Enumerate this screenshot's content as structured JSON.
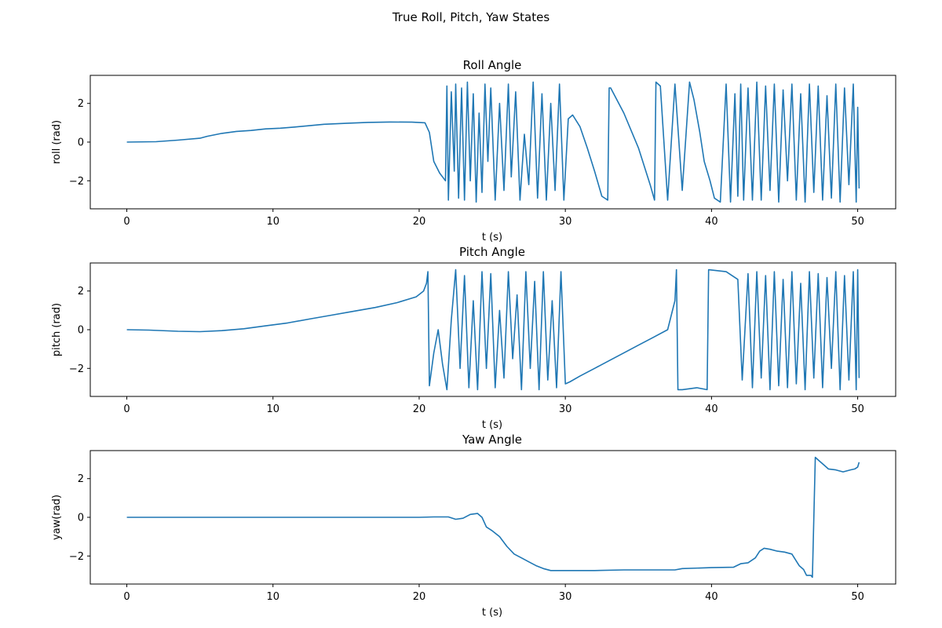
{
  "figure": {
    "title": "True Roll, Pitch, Yaw States"
  },
  "colors": {
    "series": "#1f77b4",
    "axes": "#000000",
    "background": "#ffffff"
  },
  "chart_data": [
    {
      "type": "line",
      "title": "Roll Angle",
      "xlabel": "t (s)",
      "ylabel": "roll (rad)",
      "xlim": [
        -2.5,
        52.6
      ],
      "ylim": [
        -3.45,
        3.45
      ],
      "xticks": [
        0,
        10,
        20,
        30,
        40,
        50
      ],
      "xtick_labels": [
        "0",
        "10",
        "20",
        "30",
        "40",
        "50"
      ],
      "yticks": [
        -2,
        0,
        2
      ],
      "ytick_labels": [
        "−2",
        "0",
        "2"
      ],
      "grid": false,
      "series": [
        {
          "x": [
            0,
            2,
            3.5,
            5,
            5.5,
            6.5,
            7.5,
            8.5,
            9.5,
            10.5,
            11.5,
            12.5,
            13.5,
            15,
            16.5,
            18,
            19.5,
            20.4,
            20.7,
            21.0,
            21.4,
            21.8,
            21.9,
            22.0,
            22.2,
            22.4,
            22.5,
            22.7,
            22.9,
            23.1,
            23.3,
            23.5,
            23.7,
            23.9,
            24.1,
            24.3,
            24.5,
            24.7,
            24.9,
            25.2,
            25.5,
            25.8,
            26.1,
            26.3,
            26.6,
            26.9,
            27.2,
            27.5,
            27.8,
            28.1,
            28.4,
            28.7,
            29.0,
            29.3,
            29.6,
            29.9,
            30.2,
            30.5,
            31.0,
            31.5,
            32.0,
            32.5,
            32.9,
            33.0,
            33.1,
            34.0,
            35.0,
            35.8,
            36.1,
            36.2,
            36.5,
            37.0,
            37.5,
            38.0,
            38.5,
            38.8,
            39.2,
            39.5,
            39.9,
            40.2,
            40.6,
            41.0,
            41.3,
            41.6,
            41.8,
            42.0,
            42.2,
            42.5,
            42.8,
            43.1,
            43.4,
            43.7,
            44.0,
            44.3,
            44.6,
            44.9,
            45.2,
            45.5,
            45.8,
            46.1,
            46.4,
            46.7,
            47.0,
            47.3,
            47.6,
            47.9,
            48.2,
            48.5,
            48.8,
            49.1,
            49.4,
            49.7,
            49.9,
            50.0,
            50.1
          ],
          "y": [
            0,
            0.02,
            0.1,
            0.2,
            0.3,
            0.45,
            0.55,
            0.6,
            0.68,
            0.72,
            0.78,
            0.85,
            0.92,
            0.97,
            1.02,
            1.04,
            1.03,
            1.0,
            0.5,
            -1.0,
            -1.6,
            -2.0,
            2.9,
            -3.0,
            2.6,
            -1.5,
            3.0,
            -2.9,
            2.8,
            -3.0,
            3.1,
            -2.0,
            2.5,
            -3.1,
            1.5,
            -2.6,
            3.0,
            -1.0,
            2.8,
            -3.0,
            2.0,
            -2.5,
            3.0,
            -1.8,
            2.6,
            -3.0,
            0.4,
            -2.2,
            3.1,
            -2.9,
            2.5,
            -3.0,
            2.0,
            -2.5,
            3.0,
            -3.0,
            1.2,
            1.4,
            0.8,
            -0.3,
            -1.5,
            -2.8,
            -3.0,
            2.8,
            2.8,
            1.5,
            -0.3,
            -2.2,
            -3.0,
            3.1,
            2.9,
            -3.0,
            3.0,
            -2.5,
            3.1,
            2.2,
            0.5,
            -1.0,
            -2.0,
            -2.9,
            -3.1,
            3.0,
            -3.1,
            2.5,
            -2.8,
            3.0,
            -3.0,
            2.8,
            -3.0,
            3.1,
            -3.0,
            2.9,
            -2.5,
            3.0,
            -3.1,
            2.7,
            -2.0,
            3.0,
            -3.0,
            2.5,
            -3.1,
            3.0,
            -2.6,
            2.9,
            -3.0,
            2.4,
            -2.9,
            3.0,
            -3.1,
            2.8,
            -2.2,
            3.0,
            -3.1,
            1.8,
            -2.4
          ]
        }
      ]
    },
    {
      "type": "line",
      "title": "Pitch Angle",
      "xlabel": "t (s)",
      "ylabel": "pitch (rad)",
      "xlim": [
        -2.5,
        52.6
      ],
      "ylim": [
        -3.45,
        3.45
      ],
      "xticks": [
        0,
        10,
        20,
        30,
        40,
        50
      ],
      "xtick_labels": [
        "0",
        "10",
        "20",
        "30",
        "40",
        "50"
      ],
      "yticks": [
        -2,
        0,
        2
      ],
      "ytick_labels": [
        "−2",
        "0",
        "2"
      ],
      "grid": false,
      "series": [
        {
          "x": [
            0,
            1.5,
            3.5,
            5,
            6.5,
            8,
            9.5,
            11,
            12.5,
            14,
            15.5,
            17,
            18.5,
            19.8,
            20.3,
            20.5,
            20.6,
            20.7,
            21.0,
            21.3,
            21.6,
            21.9,
            22.2,
            22.5,
            22.8,
            23.1,
            23.4,
            23.7,
            24.0,
            24.3,
            24.6,
            24.9,
            25.2,
            25.5,
            25.8,
            26.1,
            26.4,
            26.7,
            27.0,
            27.3,
            27.6,
            27.9,
            28.2,
            28.5,
            28.8,
            29.1,
            29.4,
            29.7,
            30.0,
            30.3,
            31.0,
            32.0,
            33.0,
            34.0,
            35.0,
            36.0,
            37.0,
            37.5,
            37.6,
            37.7,
            38.0,
            39.0,
            39.7,
            39.8,
            41.0,
            41.8,
            42.1,
            42.5,
            42.8,
            43.1,
            43.4,
            43.7,
            44.0,
            44.3,
            44.6,
            44.9,
            45.2,
            45.5,
            45.8,
            46.1,
            46.4,
            46.7,
            47.0,
            47.3,
            47.6,
            47.9,
            48.2,
            48.5,
            48.8,
            49.1,
            49.4,
            49.7,
            49.9,
            50.0,
            50.1
          ],
          "y": [
            0,
            -0.02,
            -0.08,
            -0.1,
            -0.05,
            0.05,
            0.2,
            0.35,
            0.55,
            0.75,
            0.95,
            1.15,
            1.4,
            1.7,
            2.0,
            2.4,
            3.0,
            -2.9,
            -1.2,
            0.0,
            -1.8,
            -3.1,
            0.5,
            3.1,
            -2.0,
            2.8,
            -3.0,
            1.5,
            -3.1,
            3.0,
            -2.0,
            2.9,
            -3.0,
            1.0,
            -2.5,
            3.0,
            -1.5,
            1.8,
            -3.1,
            3.0,
            -2.0,
            2.5,
            -3.1,
            3.0,
            -2.6,
            1.5,
            -3.0,
            3.0,
            -2.8,
            -2.7,
            -2.4,
            -2.0,
            -1.6,
            -1.2,
            -0.8,
            -0.4,
            0.0,
            1.5,
            3.1,
            -3.1,
            -3.1,
            -3.0,
            -3.1,
            3.1,
            3.0,
            2.6,
            -2.6,
            2.9,
            -3.0,
            3.0,
            -2.5,
            2.8,
            -3.1,
            3.0,
            -2.9,
            2.6,
            -3.0,
            3.0,
            -2.8,
            2.4,
            -3.1,
            3.0,
            -2.5,
            2.9,
            -3.0,
            2.7,
            -2.0,
            3.0,
            -3.1,
            2.8,
            -2.6,
            3.0,
            -3.1,
            3.1,
            -2.5
          ]
        }
      ]
    },
    {
      "type": "line",
      "title": "Yaw Angle",
      "xlabel": "t (s)",
      "ylabel": "yaw(rad)",
      "xlim": [
        -2.5,
        52.6
      ],
      "ylim": [
        -3.45,
        3.45
      ],
      "xticks": [
        0,
        10,
        20,
        30,
        40,
        50
      ],
      "xtick_labels": [
        "0",
        "10",
        "20",
        "30",
        "40",
        "50"
      ],
      "yticks": [
        -2,
        0,
        2
      ],
      "ytick_labels": [
        "−2",
        "0",
        "2"
      ],
      "grid": false,
      "series": [
        {
          "x": [
            0,
            5,
            10,
            15,
            20,
            21,
            22,
            22.5,
            23,
            23.5,
            24,
            24.3,
            24.6,
            25,
            25.5,
            26,
            26.5,
            27,
            27.5,
            28,
            28.5,
            29,
            30,
            32,
            34,
            36,
            37.5,
            38,
            40,
            41.5,
            42,
            42.5,
            43,
            43.3,
            43.6,
            44,
            44.5,
            45,
            45.5,
            46,
            46.3,
            46.5,
            46.8,
            46.9,
            47.1,
            47.4,
            47.7,
            48,
            48.5,
            49,
            49.5,
            49.8,
            50.0,
            50.1
          ],
          "y": [
            0.0,
            0.0,
            0.0,
            0.0,
            0.0,
            0.02,
            0.02,
            -0.1,
            -0.05,
            0.15,
            0.2,
            0.0,
            -0.5,
            -0.7,
            -1.0,
            -1.5,
            -1.9,
            -2.1,
            -2.3,
            -2.5,
            -2.65,
            -2.75,
            -2.75,
            -2.75,
            -2.72,
            -2.72,
            -2.72,
            -2.65,
            -2.6,
            -2.58,
            -2.4,
            -2.35,
            -2.1,
            -1.75,
            -1.6,
            -1.65,
            -1.75,
            -1.8,
            -1.9,
            -2.5,
            -2.7,
            -3.0,
            -3.0,
            -3.1,
            3.1,
            2.9,
            2.7,
            2.5,
            2.45,
            2.35,
            2.45,
            2.5,
            2.6,
            2.85
          ]
        }
      ]
    }
  ]
}
